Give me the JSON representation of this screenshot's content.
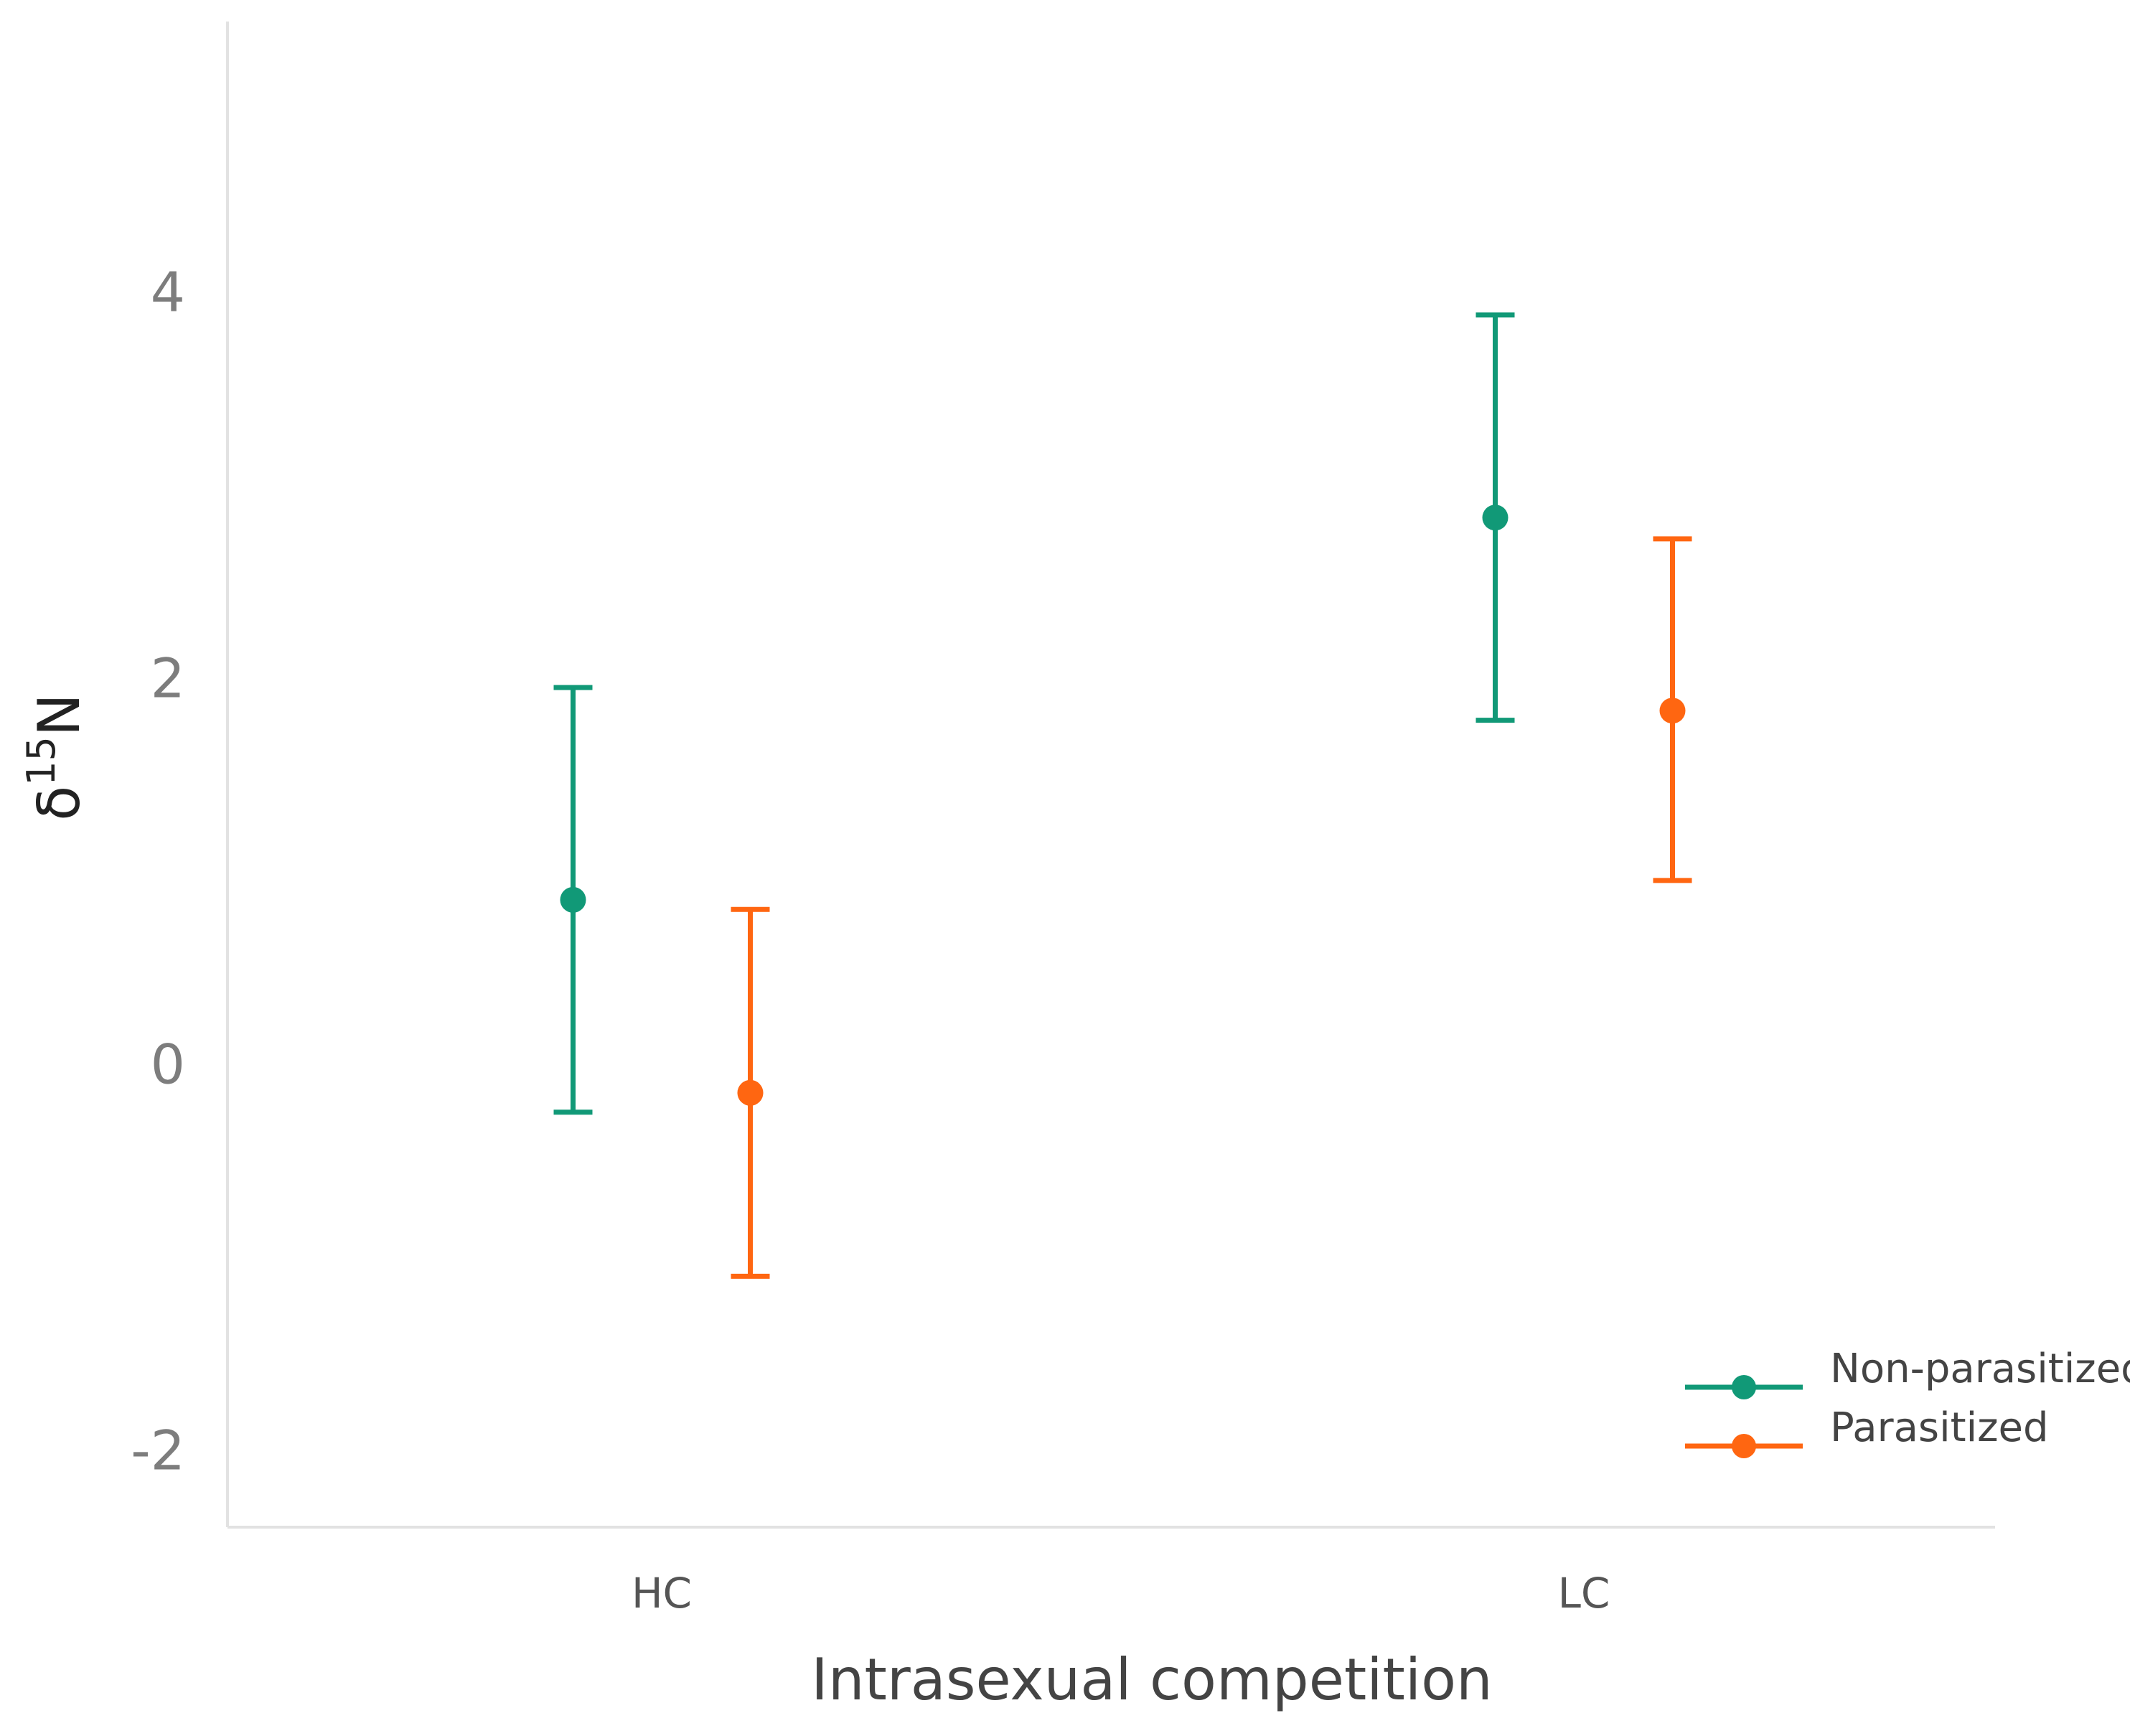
{
  "chart_data": {
    "type": "scatter",
    "title": "",
    "xlabel": "Intrasexual competition",
    "ylabel_base": "δ",
    "ylabel_superscript": "15",
    "ylabel_tail": "N",
    "categories": [
      "HC",
      "LC"
    ],
    "ylim": [
      -2.4,
      5.4
    ],
    "yticks": [
      -2,
      0,
      2,
      4
    ],
    "ytick_labels": [
      "-2",
      "0",
      "2",
      "4"
    ],
    "grid": false,
    "legend_position": "bottom-right",
    "series": [
      {
        "name": "Non-parasitized",
        "color": "#119977",
        "points": [
          {
            "category": "HC",
            "y": 0.85,
            "lower": -0.25,
            "upper": 1.95
          },
          {
            "category": "LC",
            "y": 2.83,
            "lower": 1.78,
            "upper": 3.88
          }
        ]
      },
      {
        "name": "Parasitized",
        "color": "#ff6611",
        "points": [
          {
            "category": "HC",
            "y": -0.15,
            "lower": -1.1,
            "upper": 0.8
          },
          {
            "category": "LC",
            "y": 1.83,
            "lower": 0.95,
            "upper": 2.72
          }
        ]
      }
    ],
    "colors": {
      "axis": "#e2e2e2",
      "tick_text": "#7d7d7d",
      "category_text": "#555555",
      "xlabel_text": "#444444",
      "ylabel_text": "#222222",
      "legend_text": "#444444"
    }
  }
}
